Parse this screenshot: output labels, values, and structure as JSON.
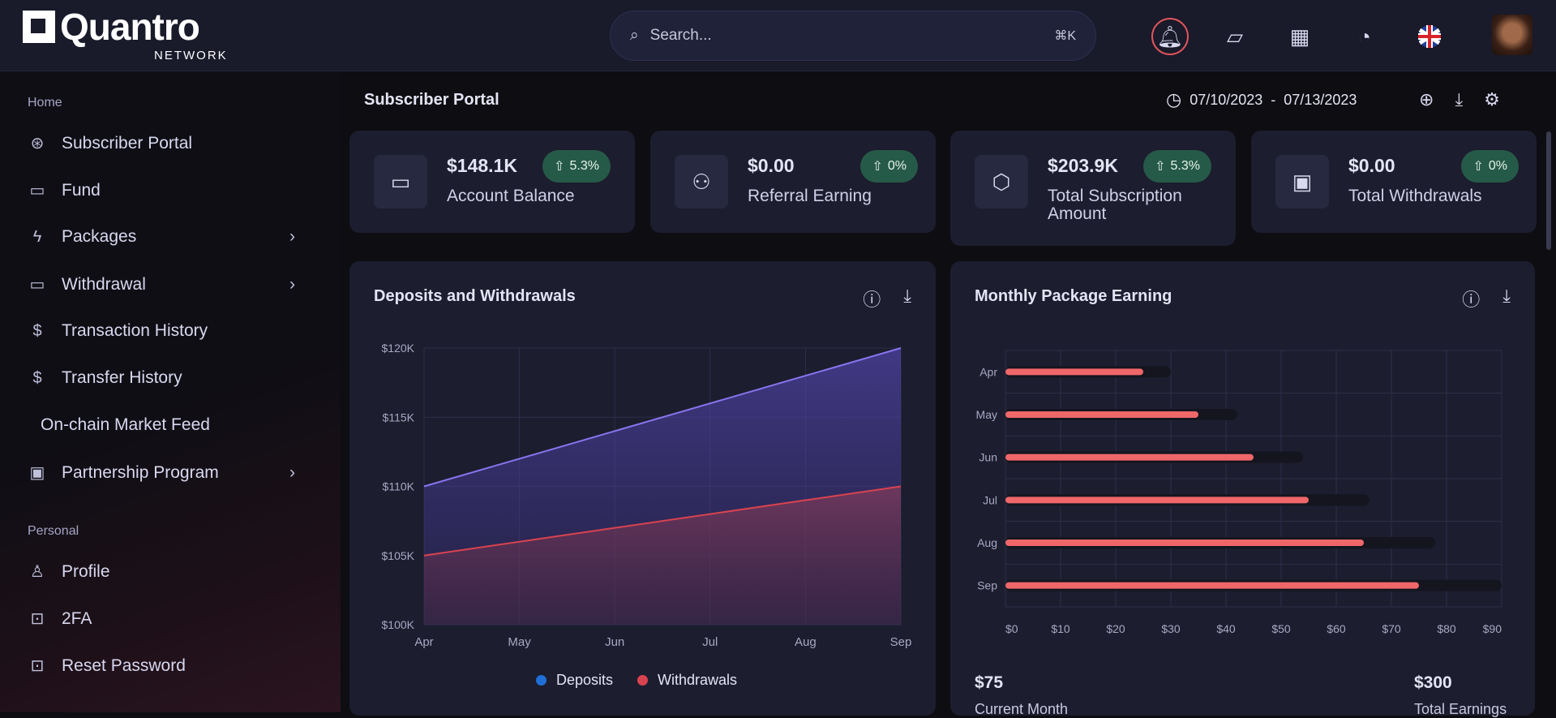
{
  "header": {
    "logo": "Quantro",
    "logo_sub": "NETWORK",
    "search_placeholder": "Search...",
    "search_shortcut": "⌘K",
    "icons": [
      "bell-icon",
      "message-icon",
      "apps-grid-icon",
      "palette-icon",
      "uk-flag-icon",
      "avatar"
    ]
  },
  "sidebar": {
    "sections": [
      {
        "label": "Home",
        "items": [
          {
            "label": "Subscriber Portal",
            "icon": "aperture-icon"
          },
          {
            "label": "Fund",
            "icon": "wallet-icon"
          },
          {
            "label": "Packages",
            "icon": "bolt-icon",
            "chevron": true
          },
          {
            "label": "Withdrawal",
            "icon": "wallet-icon",
            "chevron": true
          },
          {
            "label": "Transaction History",
            "icon": "dollar-icon"
          },
          {
            "label": "Transfer History",
            "icon": "dollar-icon"
          },
          {
            "label": "On-chain Market Feed",
            "icon": ""
          },
          {
            "label": "Partnership Program",
            "icon": "chip-icon",
            "chevron": true
          }
        ]
      },
      {
        "label": "Personal",
        "items": [
          {
            "label": "Profile",
            "icon": "user-icon"
          },
          {
            "label": "2FA",
            "icon": "lock-icon"
          },
          {
            "label": "Reset Password",
            "icon": "lock-icon"
          }
        ]
      }
    ]
  },
  "page": {
    "title": "Subscriber Portal",
    "date_from": "07/10/2023",
    "date_sep": "-",
    "date_to": "07/13/2023"
  },
  "stats": [
    {
      "value": "$148.1K",
      "label": "Account Balance",
      "change": "5.3%",
      "icon": "wallet-icon"
    },
    {
      "value": "$0.00",
      "label": "Referral Earning",
      "change": "0%",
      "icon": "users-icon"
    },
    {
      "value": "$203.9K",
      "label": "Total Subscription Amount",
      "change": "5.3%",
      "icon": "box-icon"
    },
    {
      "value": "$0.00",
      "label": "Total Withdrawals",
      "change": "0%",
      "icon": "banknote-icon"
    }
  ],
  "colors": {
    "deposits": "#7b68ee",
    "withdrawals": "#d9434f",
    "bars": "#f0676a",
    "badge": "#265a48"
  },
  "chart_data": [
    {
      "type": "area",
      "title": "Deposits and Withdrawals",
      "categories": [
        "Apr",
        "May",
        "Jun",
        "Jul",
        "Aug",
        "Sep"
      ],
      "ylim": [
        100000,
        120000
      ],
      "yticks": [
        "$100K",
        "$105K",
        "$110K",
        "$115K",
        "$120K"
      ],
      "grid": true,
      "legend": "bottom",
      "series": [
        {
          "name": "Deposits",
          "values": [
            110000,
            112000,
            114000,
            116000,
            118000,
            120000
          ]
        },
        {
          "name": "Withdrawals",
          "values": [
            105000,
            106000,
            107000,
            108000,
            109000,
            110000
          ]
        }
      ]
    },
    {
      "type": "bar",
      "orientation": "horizontal",
      "title": "Monthly Package Earning",
      "categories": [
        "Apr",
        "May",
        "Jun",
        "Jul",
        "Aug",
        "Sep"
      ],
      "values": [
        25,
        35,
        45,
        55,
        65,
        75
      ],
      "background_values": [
        30,
        42,
        54,
        66,
        78,
        90
      ],
      "xlim": [
        0,
        90
      ],
      "xticks": [
        "$0",
        "$10",
        "$20",
        "$30",
        "$40",
        "$50",
        "$60",
        "$70",
        "$80",
        "$90"
      ],
      "grid": true,
      "summary": {
        "current_value": "$75",
        "current_label": "Current Month",
        "total_value": "$300",
        "total_label": "Total Earnings"
      }
    }
  ]
}
